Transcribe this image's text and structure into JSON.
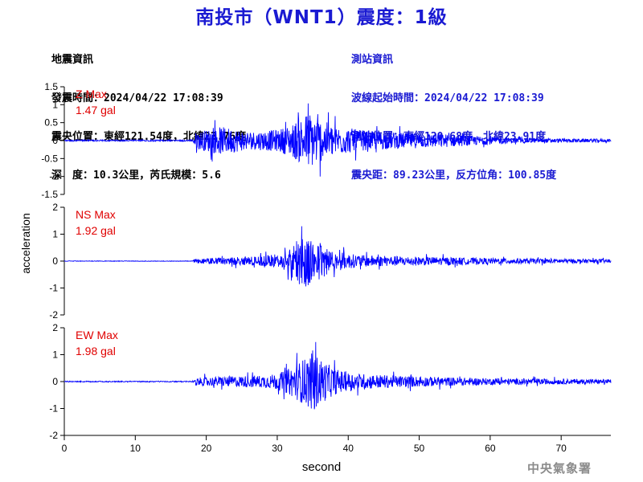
{
  "title": "南投市（WNT1）震度：1級",
  "event_info": {
    "heading": "地震資訊",
    "origin_time": "發震時間：2024/04/22 17:08:39",
    "epicenter": "震央位置：東經121.54度，北緯23.76度",
    "depth_magnitude": "深　度：10.3公里，芮氏規模：5.6"
  },
  "station_info": {
    "heading": "測站資訊",
    "wave_start": "波線起始時間：2024/04/22 17:08:39",
    "station_location": "測站位置：東經120.68度，北緯23.91度",
    "distance_azimuth": "震央距：89.23公里，反方位角：100.85度"
  },
  "watermark": "中央氣象署",
  "colors": {
    "title": "#1a1ad2",
    "trace": "#0000ff",
    "max_label": "#e00000",
    "axis": "#000000"
  },
  "chart_data": {
    "type": "line",
    "xlabel": "second",
    "ylabel": "acceleration",
    "xlim": [
      0,
      77
    ],
    "xticks": [
      0,
      10,
      20,
      30,
      40,
      50,
      60,
      70
    ],
    "panels": [
      {
        "component": "Z",
        "max_title": "Z Max",
        "max_value": "1.47 gal",
        "ylim": [
          -1.5,
          1.5
        ],
        "yticks": [
          1.5,
          1,
          0.5,
          0,
          -0.5,
          -1,
          -1.5
        ],
        "ytick_labels": [
          "1.5",
          "1",
          "0.5",
          "0",
          "-0.5",
          "-1",
          "-1.5"
        ],
        "noise": 0.02,
        "envelope": [
          [
            0,
            0.02
          ],
          [
            18,
            0.02
          ],
          [
            18.5,
            0.4
          ],
          [
            20,
            0.55
          ],
          [
            22,
            0.7
          ],
          [
            24,
            0.6
          ],
          [
            26,
            0.45
          ],
          [
            28,
            0.5
          ],
          [
            30,
            0.55
          ],
          [
            32,
            0.8
          ],
          [
            33,
            1.1
          ],
          [
            34.5,
            1.47
          ],
          [
            36,
            1.1
          ],
          [
            38,
            0.75
          ],
          [
            40,
            0.65
          ],
          [
            42,
            0.5
          ],
          [
            45,
            0.45
          ],
          [
            48,
            0.4
          ],
          [
            50,
            0.38
          ],
          [
            53,
            0.35
          ],
          [
            56,
            0.28
          ],
          [
            59,
            0.22
          ],
          [
            62,
            0.15
          ],
          [
            66,
            0.12
          ],
          [
            70,
            0.1
          ],
          [
            77,
            0.08
          ]
        ]
      },
      {
        "component": "NS",
        "max_title": "NS Max",
        "max_value": "1.92 gal",
        "ylim": [
          -2,
          2
        ],
        "yticks": [
          2,
          1,
          0,
          -1,
          -2
        ],
        "ytick_labels": [
          "2",
          "1",
          "0",
          "-1",
          "-2"
        ],
        "noise": 0.01,
        "envelope": [
          [
            0,
            0.01
          ],
          [
            18,
            0.01
          ],
          [
            18.5,
            0.15
          ],
          [
            20,
            0.2
          ],
          [
            24,
            0.28
          ],
          [
            27,
            0.3
          ],
          [
            29,
            0.4
          ],
          [
            31,
            0.6
          ],
          [
            32.5,
            1.2
          ],
          [
            33.5,
            1.92
          ],
          [
            35,
            1.5
          ],
          [
            36.5,
            1.1
          ],
          [
            38,
            0.7
          ],
          [
            40,
            0.5
          ],
          [
            42,
            0.4
          ],
          [
            45,
            0.35
          ],
          [
            50,
            0.3
          ],
          [
            55,
            0.25
          ],
          [
            60,
            0.2
          ],
          [
            65,
            0.18
          ],
          [
            70,
            0.15
          ],
          [
            77,
            0.13
          ]
        ]
      },
      {
        "component": "EW",
        "max_title": "EW Max",
        "max_value": "1.98 gal",
        "ylim": [
          -2,
          2
        ],
        "yticks": [
          2,
          1,
          0,
          -1,
          -2
        ],
        "ytick_labels": [
          "2",
          "1",
          "0",
          "-1",
          "-2"
        ],
        "noise": 0.02,
        "envelope": [
          [
            0,
            0.02
          ],
          [
            18,
            0.02
          ],
          [
            18.5,
            0.25
          ],
          [
            20,
            0.3
          ],
          [
            23,
            0.35
          ],
          [
            26,
            0.4
          ],
          [
            29,
            0.45
          ],
          [
            31,
            0.7
          ],
          [
            33,
            1.3
          ],
          [
            35,
            1.98
          ],
          [
            36.5,
            1.4
          ],
          [
            38,
            0.9
          ],
          [
            40,
            0.6
          ],
          [
            43,
            0.5
          ],
          [
            46,
            0.42
          ],
          [
            50,
            0.35
          ],
          [
            55,
            0.28
          ],
          [
            60,
            0.22
          ],
          [
            65,
            0.2
          ],
          [
            70,
            0.18
          ],
          [
            77,
            0.15
          ]
        ]
      }
    ]
  }
}
